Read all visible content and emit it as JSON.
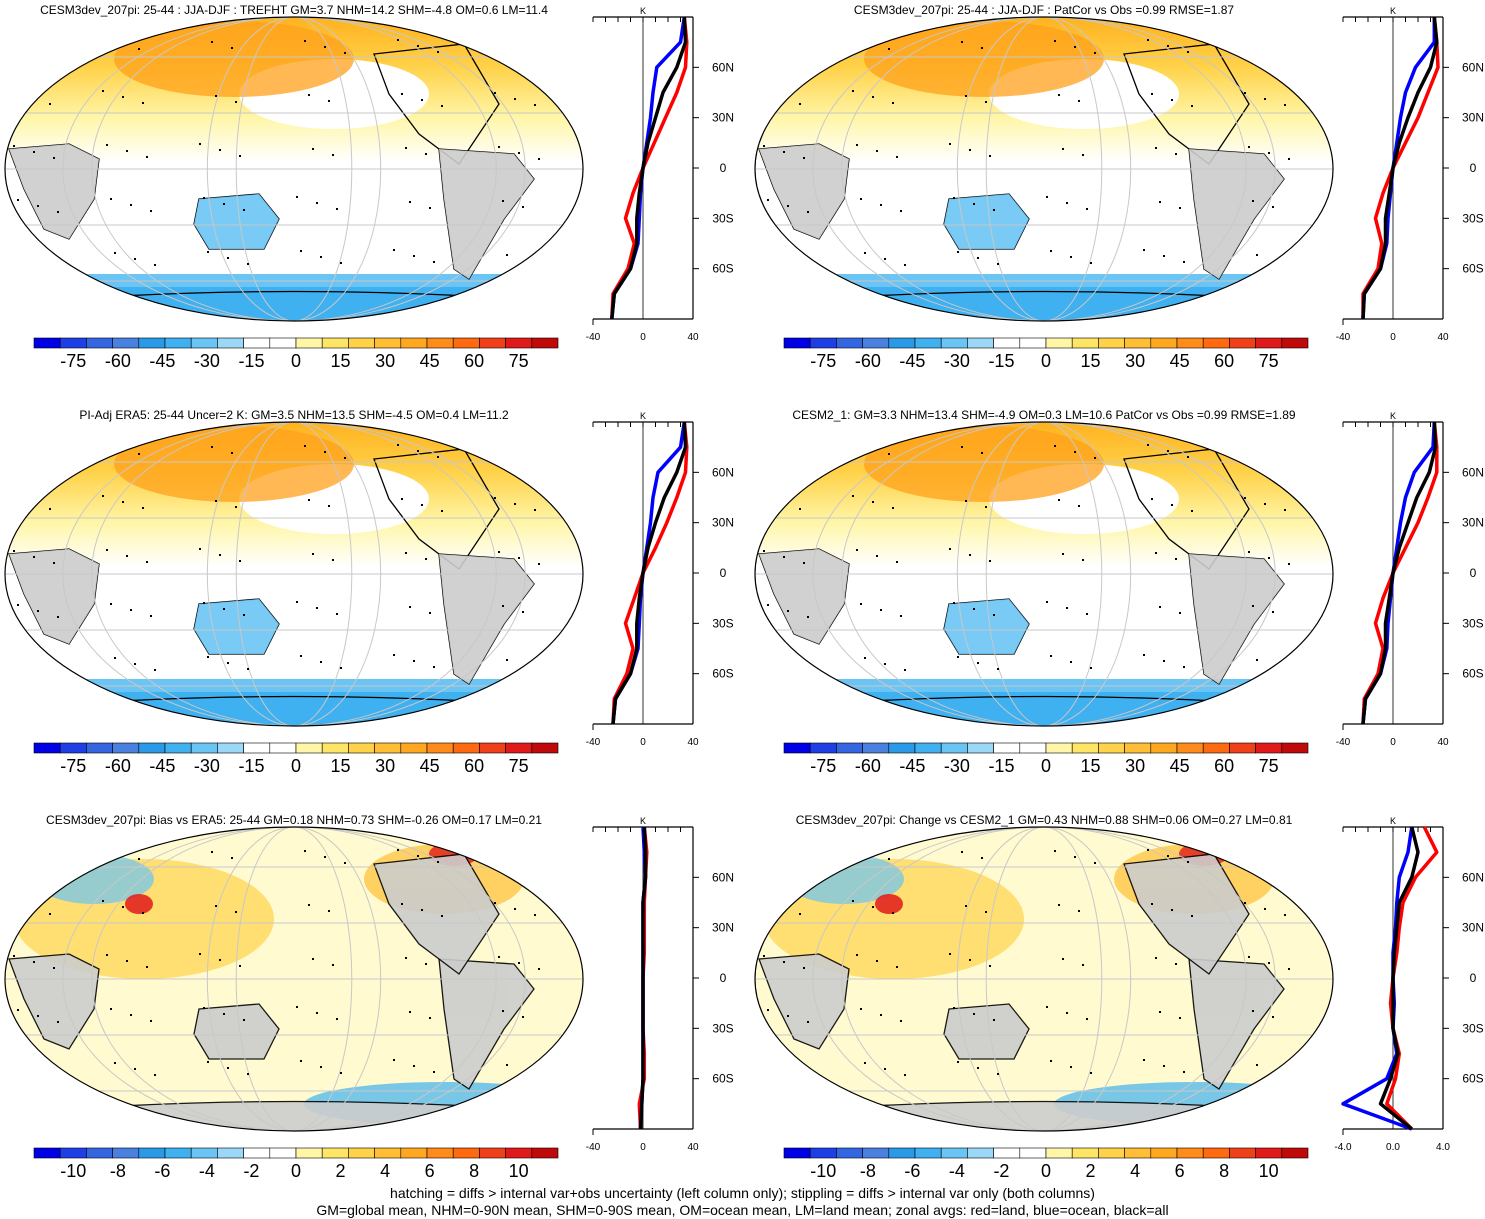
{
  "colors": {
    "land_gray": "#cccccc",
    "grid": "#c8c8c8",
    "zonal_land": "#ff0000",
    "zonal_ocean": "#0000ff",
    "zonal_all": "#000000",
    "palette": [
      "#0000e6",
      "#1f3fe6",
      "#3366e0",
      "#4a80e0",
      "#2a9ae8",
      "#3fb0f0",
      "#6ac4f4",
      "#9bd7f7",
      "#ffffff",
      "#ffffff",
      "#fff6a8",
      "#ffe566",
      "#ffd24a",
      "#ffbe33",
      "#ffa81f",
      "#ff8c1a",
      "#ff6a10",
      "#f0401a",
      "#e01a1a",
      "#c00a0a"
    ]
  },
  "footer": {
    "line1": "hatching = diffs > internal var+obs uncertainty (left column only); stippling = diffs > internal var only (both columns)",
    "line2": "GM=global mean, NHM=0-90N mean, SHM=0-90S mean, OM=ocean mean, LM=land mean; zonal avgs: red=land, blue=ocean, black=all"
  },
  "chart_data": [
    {
      "type": "heatmap",
      "title": "CESM3dev_207pi: 25-44 : JJA-DJF : TREFHT GM=3.7 NHM=14.2 SHM=-4.8 OM=0.6 LM=11.4",
      "lat_labels": [
        "60N",
        "30N",
        "0",
        "30S",
        "60S"
      ],
      "colorbar": {
        "ticks": [
          "-75",
          "-60",
          "-45",
          "-30",
          "-15",
          "0",
          "15",
          "30",
          "45",
          "60",
          "75"
        ]
      },
      "zonal_mean": {
        "xlabel": "K",
        "xticks": [
          "-40",
          "0",
          "40"
        ],
        "xlim": [
          -40,
          40
        ],
        "lat": [
          -90,
          -75,
          -60,
          -45,
          -30,
          -15,
          0,
          15,
          30,
          45,
          60,
          75,
          90
        ],
        "series": [
          {
            "name": "land",
            "values": [
              -25,
              -24,
              -12,
              -7,
              -14,
              -8,
              0,
              9,
              18,
              27,
              34,
              35,
              33
            ]
          },
          {
            "name": "ocean",
            "values": [
              -25,
              -23,
              -10,
              -4,
              -3,
              -2,
              0,
              3,
              6,
              8,
              11,
              30,
              33
            ]
          },
          {
            "name": "all",
            "values": [
              -25,
              -23,
              -10,
              -5,
              -5,
              -3,
              0,
              4,
              10,
              16,
              27,
              34,
              33
            ]
          }
        ]
      }
    },
    {
      "type": "heatmap",
      "title": "CESM3dev_207pi: 25-44 : JJA-DJF : PatCor vs Obs =0.99 RMSE=1.87",
      "lat_labels": [
        "60N",
        "30N",
        "0",
        "30S",
        "60S"
      ],
      "colorbar": {
        "ticks": [
          "-75",
          "-60",
          "-45",
          "-30",
          "-15",
          "0",
          "15",
          "30",
          "45",
          "60",
          "75"
        ]
      },
      "zonal_mean": {
        "xlabel": "K",
        "xticks": [
          "-40",
          "0",
          "40"
        ],
        "xlim": [
          -40,
          40
        ],
        "lat": [
          -90,
          -75,
          -60,
          -45,
          -30,
          -15,
          0,
          15,
          30,
          45,
          60,
          75,
          90
        ],
        "series": [
          {
            "name": "land",
            "values": [
              -24,
              -24,
              -12,
              -9,
              -14,
              -8,
              0,
              10,
              20,
              28,
              36,
              35,
              33
            ]
          },
          {
            "name": "ocean",
            "values": [
              -24,
              -23,
              -10,
              -5,
              -4,
              -2,
              0,
              3,
              6,
              10,
              18,
              33,
              33
            ]
          },
          {
            "name": "all",
            "values": [
              -24,
              -23,
              -10,
              -6,
              -6,
              -3,
              0,
              5,
              12,
              20,
              30,
              35,
              33
            ]
          }
        ]
      }
    },
    {
      "type": "heatmap",
      "title": "PI-Adj ERA5: 25-44 Uncer=2 K: GM=3.5 NHM=13.5 SHM=-4.5 OM=0.4 LM=11.2",
      "lat_labels": [
        "60N",
        "30N",
        "0",
        "30S",
        "60S"
      ],
      "colorbar": {
        "ticks": [
          "-75",
          "-60",
          "-45",
          "-30",
          "-15",
          "0",
          "15",
          "30",
          "45",
          "60",
          "75"
        ]
      },
      "zonal_mean": {
        "xlabel": "K",
        "xticks": [
          "-40",
          "0",
          "40"
        ],
        "xlim": [
          -40,
          40
        ],
        "lat": [
          -90,
          -75,
          -60,
          -45,
          -30,
          -15,
          0,
          15,
          30,
          45,
          60,
          75,
          90
        ],
        "series": [
          {
            "name": "land",
            "values": [
              -24,
              -23,
              -13,
              -8,
              -14,
              -7,
              0,
              10,
              19,
              27,
              34,
              35,
              33
            ]
          },
          {
            "name": "ocean",
            "values": [
              -24,
              -22,
              -10,
              -4,
              -3,
              -2,
              0,
              3,
              6,
              8,
              12,
              30,
              33
            ]
          },
          {
            "name": "all",
            "values": [
              -24,
              -22,
              -10,
              -5,
              -5,
              -3,
              0,
              4,
              10,
              17,
              27,
              34,
              33
            ]
          }
        ]
      }
    },
    {
      "type": "heatmap",
      "title": "CESM2_1: GM=3.3 NHM=13.4 SHM=-4.9 OM=0.3 LM=10.6 PatCor vs Obs =0.99 RMSE=1.89",
      "lat_labels": [
        "60N",
        "30N",
        "0",
        "30S",
        "60S"
      ],
      "colorbar": {
        "ticks": [
          "-75",
          "-60",
          "-45",
          "-30",
          "-15",
          "0",
          "15",
          "30",
          "45",
          "60",
          "75"
        ]
      },
      "zonal_mean": {
        "xlabel": "K",
        "xticks": [
          "-40",
          "0",
          "40"
        ],
        "xlim": [
          -40,
          40
        ],
        "lat": [
          -90,
          -75,
          -60,
          -45,
          -30,
          -15,
          0,
          15,
          30,
          45,
          60,
          75,
          90
        ],
        "series": [
          {
            "name": "land",
            "values": [
              -24,
              -23,
              -12,
              -8,
              -14,
              -8,
              0,
              10,
              20,
              28,
              35,
              35,
              33
            ]
          },
          {
            "name": "ocean",
            "values": [
              -24,
              -22,
              -10,
              -5,
              -4,
              -2,
              0,
              3,
              6,
              10,
              17,
              32,
              33
            ]
          },
          {
            "name": "all",
            "values": [
              -24,
              -22,
              -10,
              -6,
              -6,
              -3,
              0,
              5,
              12,
              19,
              29,
              34,
              33
            ]
          }
        ]
      }
    },
    {
      "type": "heatmap",
      "title": "CESM3dev_207pi: Bias vs ERA5: 25-44 GM=0.18 NHM=0.73 SHM=-0.26 OM=0.17 LM=0.21",
      "lat_labels": [
        "60N",
        "30N",
        "0",
        "30S",
        "60S"
      ],
      "colorbar": {
        "ticks": [
          "-10",
          "-8",
          "-6",
          "-4",
          "-2",
          "0",
          "2",
          "4",
          "6",
          "8",
          "10"
        ]
      },
      "zonal_mean": {
        "xlabel": "K",
        "xticks": [
          "-40",
          "0",
          "40"
        ],
        "xlim": [
          -40,
          40
        ],
        "lat": [
          -90,
          -75,
          -60,
          -45,
          -30,
          -15,
          0,
          15,
          30,
          45,
          60,
          75,
          90
        ],
        "series": [
          {
            "name": "land",
            "values": [
              -2,
              -3,
              1,
              1,
              0,
              0,
              0,
              1,
              1,
              1,
              2,
              3,
              1
            ]
          },
          {
            "name": "ocean",
            "values": [
              -2,
              -1,
              0,
              0,
              0,
              0,
              0,
              0,
              0,
              0,
              2,
              1,
              0
            ]
          },
          {
            "name": "all",
            "values": [
              -2,
              -1,
              0,
              0,
              0,
              0,
              0,
              0,
              0,
              0,
              2,
              2,
              1
            ]
          }
        ]
      }
    },
    {
      "type": "heatmap",
      "title": "CESM3dev_207pi: Change vs CESM2_1 GM=0.43 NHM=0.88 SHM=0.06 OM=0.27 LM=0.81",
      "lat_labels": [
        "60N",
        "30N",
        "0",
        "30S",
        "60S"
      ],
      "colorbar": {
        "ticks": [
          "-10",
          "-8",
          "-6",
          "-4",
          "-2",
          "0",
          "2",
          "4",
          "6",
          "8",
          "10"
        ]
      },
      "zonal_mean": {
        "xlabel": "K",
        "xticks": [
          "-4.0",
          "0.0",
          "4.0"
        ],
        "xlim": [
          -4,
          4
        ],
        "lat": [
          -90,
          -75,
          -60,
          -45,
          -30,
          -15,
          0,
          15,
          30,
          45,
          60,
          75,
          90
        ],
        "series": [
          {
            "name": "land",
            "values": [
              1.5,
              -0.5,
              0.2,
              0.5,
              0.0,
              -0.2,
              0.0,
              0.3,
              0.5,
              0.8,
              1.8,
              3.5,
              2.5
            ]
          },
          {
            "name": "ocean",
            "values": [
              1.5,
              -4.0,
              -0.5,
              0.3,
              0.0,
              0.1,
              0.0,
              0.0,
              0.2,
              0.3,
              0.5,
              1.2,
              1.5
            ]
          },
          {
            "name": "all",
            "values": [
              1.5,
              -1.0,
              -0.2,
              0.4,
              0.0,
              0.0,
              0.0,
              0.1,
              0.3,
              0.5,
              1.5,
              2.0,
              1.5
            ]
          }
        ]
      }
    }
  ]
}
